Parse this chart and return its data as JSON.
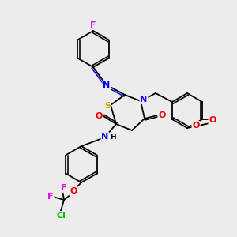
{
  "bg_color": "#ececec",
  "atom_colors": {
    "C": "#000000",
    "N": "#0000ee",
    "O": "#ee0000",
    "S": "#bbaa00",
    "F": "#ee00ee",
    "Cl": "#00bb00",
    "H": "#000000"
  },
  "bond_color": "#000000",
  "lw": 1.3,
  "fs": 8.0,
  "fs_small": 6.5
}
